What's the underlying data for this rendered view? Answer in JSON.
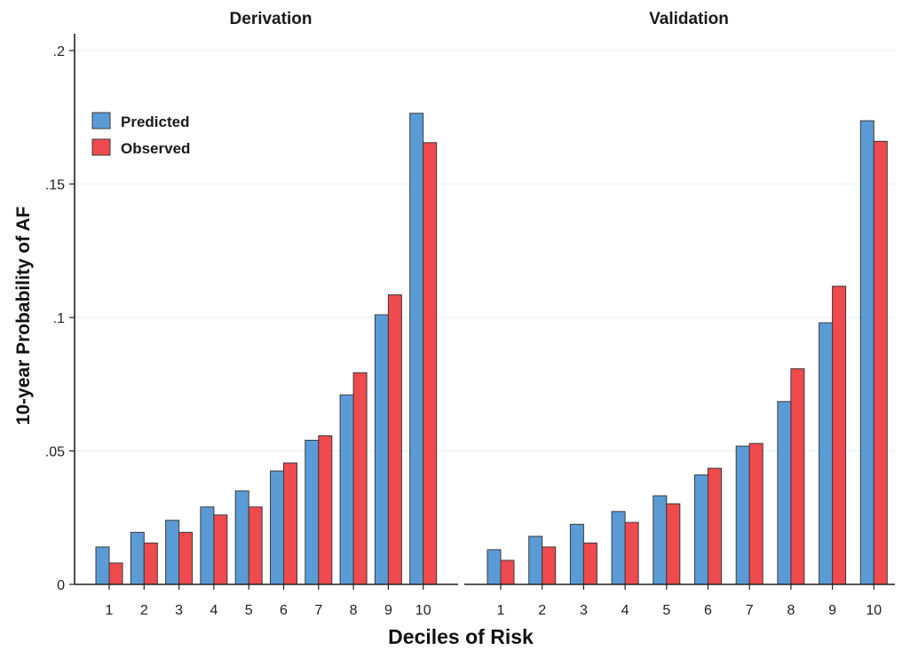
{
  "chart_data": {
    "type": "bar",
    "ylabel": "10-year Probability of AF",
    "xlabel": "Deciles of Risk",
    "ylim": [
      0,
      0.2
    ],
    "yticks": [
      {
        "value": 0,
        "label": "0"
      },
      {
        "value": 0.05,
        "label": ".05"
      },
      {
        "value": 0.1,
        "label": ".1"
      },
      {
        "value": 0.15,
        "label": ".15"
      },
      {
        "value": 0.2,
        "label": ".2"
      }
    ],
    "grid": true,
    "legend": {
      "position": "top-left"
    },
    "colors": {
      "Predicted": "#5b9bd5",
      "Observed": "#ef4a4d"
    },
    "categories": [
      "1",
      "2",
      "3",
      "4",
      "5",
      "6",
      "7",
      "8",
      "9",
      "10"
    ],
    "panels": [
      {
        "title": "Derivation",
        "series": [
          {
            "name": "Predicted",
            "values": [
              0.014,
              0.0195,
              0.024,
              0.029,
              0.035,
              0.0425,
              0.054,
              0.071,
              0.101,
              0.1765
            ]
          },
          {
            "name": "Observed",
            "values": [
              0.008,
              0.0155,
              0.0195,
              0.026,
              0.029,
              0.0455,
              0.0557,
              0.0793,
              0.1085,
              0.1655
            ]
          }
        ]
      },
      {
        "title": "Validation",
        "series": [
          {
            "name": "Predicted",
            "values": [
              0.013,
              0.018,
              0.0225,
              0.0273,
              0.0332,
              0.041,
              0.0518,
              0.0685,
              0.098,
              0.1737
            ]
          },
          {
            "name": "Observed",
            "values": [
              0.009,
              0.014,
              0.0155,
              0.0232,
              0.0302,
              0.0435,
              0.0528,
              0.0808,
              0.1117,
              0.166
            ]
          }
        ]
      }
    ]
  }
}
